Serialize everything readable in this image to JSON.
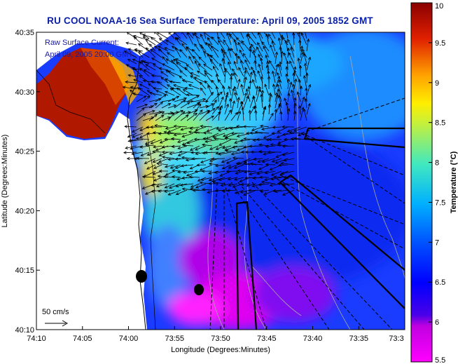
{
  "title": "RU COOL  NOAA-16  Sea Surface Temperature:  April 09, 2005 1852 GMT",
  "legend": {
    "line1": "Raw Surface Current:",
    "line2": "April 09, 2005 20:00 GMT"
  },
  "scale_label": "50 cm/s",
  "chart_data": {
    "type": "heatmap",
    "xlabel": "Longitude (Degrees:Minutes)",
    "ylabel": "Latitude (Degrees:Minutes)",
    "x_ticks": [
      "74:10",
      "74:05",
      "74:00",
      "73:55",
      "73:50",
      "73:45",
      "73:40",
      "73:35",
      "73:3"
    ],
    "y_ticks": [
      "40:35",
      "40:30",
      "40:25",
      "40:20",
      "40:15",
      "40:10"
    ],
    "colorbar": {
      "label": "Temperature (°C)",
      "range": [
        5.5,
        10
      ],
      "ticks": [
        "10",
        "9.5",
        "9",
        "8.5",
        "8",
        "7.5",
        "7",
        "6.5",
        "6",
        "5.5"
      ]
    }
  }
}
